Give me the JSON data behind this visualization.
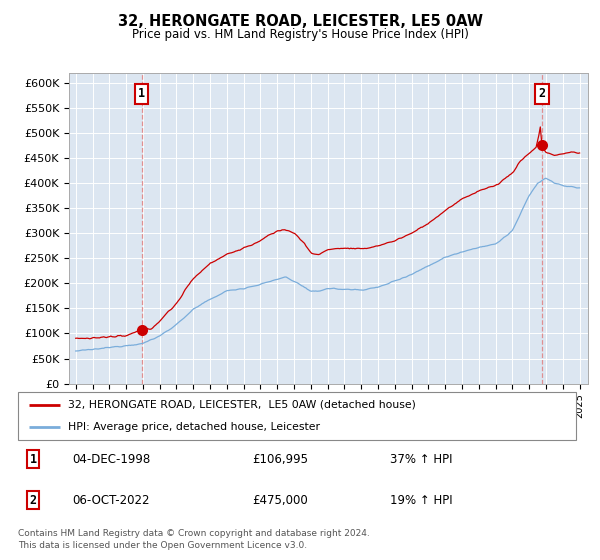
{
  "title": "32, HERONGATE ROAD, LEICESTER, LE5 0AW",
  "subtitle": "Price paid vs. HM Land Registry's House Price Index (HPI)",
  "plot_bg_color": "#dce6f1",
  "red_line_color": "#cc0000",
  "blue_line_color": "#7aaddb",
  "sale1_date": 1998.92,
  "sale1_price": 106995,
  "sale1_label": "1",
  "sale2_date": 2022.75,
  "sale2_price": 475000,
  "sale2_label": "2",
  "legend_line1": "32, HERONGATE ROAD, LEICESTER,  LE5 0AW (detached house)",
  "legend_line2": "HPI: Average price, detached house, Leicester",
  "table_row1": [
    "1",
    "04-DEC-1998",
    "£106,995",
    "37% ↑ HPI"
  ],
  "table_row2": [
    "2",
    "06-OCT-2022",
    "£475,000",
    "19% ↑ HPI"
  ],
  "footer": "Contains HM Land Registry data © Crown copyright and database right 2024.\nThis data is licensed under the Open Government Licence v3.0.",
  "xlim_start": 1994.6,
  "xlim_end": 2025.5,
  "ylim": [
    0,
    620000
  ],
  "yticks": [
    0,
    50000,
    100000,
    150000,
    200000,
    250000,
    300000,
    350000,
    400000,
    450000,
    500000,
    550000,
    600000
  ],
  "ytick_labels": [
    "£0",
    "£50K",
    "£100K",
    "£150K",
    "£200K",
    "£250K",
    "£300K",
    "£350K",
    "£400K",
    "£450K",
    "£500K",
    "£550K",
    "£600K"
  ]
}
